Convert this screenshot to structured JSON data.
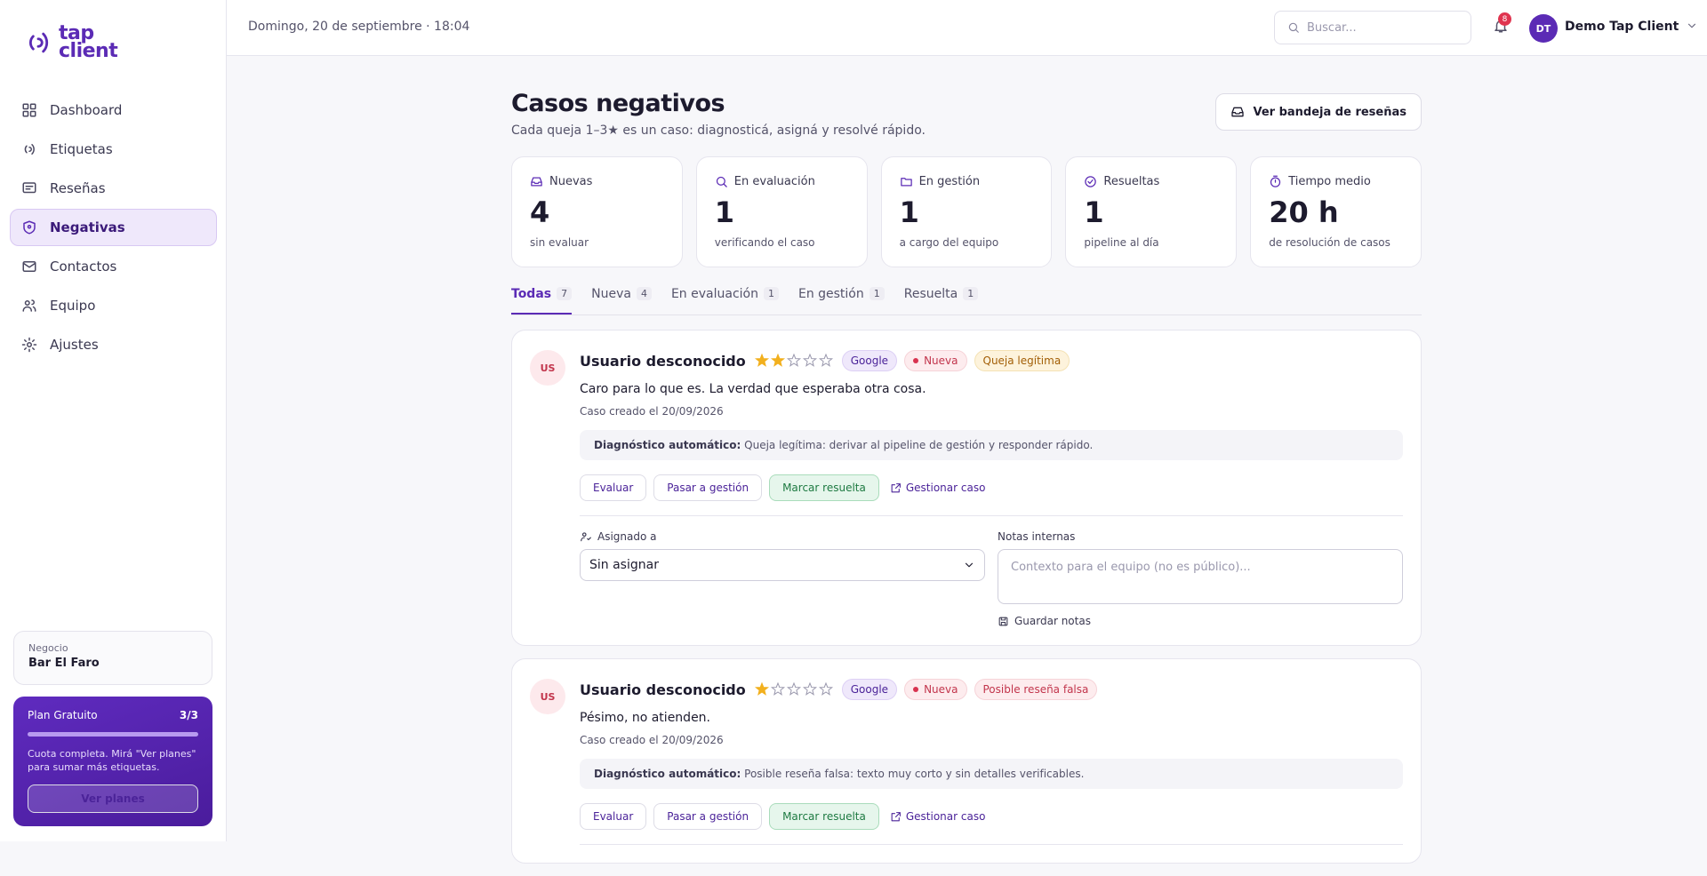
{
  "brand": {
    "line1": "tap",
    "line2": "client"
  },
  "nav": [
    {
      "label": "Dashboard",
      "icon": "grid"
    },
    {
      "label": "Etiquetas",
      "icon": "wave"
    },
    {
      "label": "Reseñas",
      "icon": "msg"
    },
    {
      "label": "Negativas",
      "icon": "shield",
      "active": true
    },
    {
      "label": "Contactos",
      "icon": "mail"
    },
    {
      "label": "Equipo",
      "icon": "users"
    },
    {
      "label": "Ajustes",
      "icon": "gear"
    }
  ],
  "business": {
    "label": "Negocio",
    "name": "Bar El Faro"
  },
  "plan": {
    "name": "Plan Gratuito",
    "usage": "3/3",
    "text": "Cuota completa. Mirá \"Ver planes\" para sumar más etiquetas.",
    "button": "Ver planes"
  },
  "header": {
    "date": "Domingo, 20 de septiembre · 18:04",
    "search_placeholder": "Buscar...",
    "notifications": 8,
    "user_initials": "DT",
    "user_name": "Demo Tap Client"
  },
  "page": {
    "title": "Casos negativos",
    "subtitle": "Cada queja 1–3★ es un caso: diagnosticá, asigná y resolvé rápido.",
    "button": "Ver bandeja de reseñas"
  },
  "stats": [
    {
      "label": "Nuevas",
      "value": 4,
      "note": "sin evaluar",
      "icon": "inbox"
    },
    {
      "label": "En evaluación",
      "value": 1,
      "note": "verificando el caso",
      "icon": "search"
    },
    {
      "label": "En gestión",
      "value": 1,
      "note": "a cargo del equipo",
      "icon": "folder"
    },
    {
      "label": "Resueltas",
      "value": 1,
      "note": "pipeline al día",
      "icon": "check"
    },
    {
      "label": "Tiempo medio",
      "value": "20 h",
      "note": "de resolución de casos",
      "icon": "timer"
    }
  ],
  "tabs": [
    {
      "label": "Todas",
      "count": 7,
      "active": true
    },
    {
      "label": "Nueva",
      "count": 4
    },
    {
      "label": "En evaluación",
      "count": 1
    },
    {
      "label": "En gestión",
      "count": 1
    },
    {
      "label": "Resuelta",
      "count": 1
    }
  ],
  "cases": [
    {
      "initials": "US",
      "name": "Usuario desconocido",
      "rating": 2,
      "source": "Google",
      "status": "Nueva",
      "tag": "Queja legítima",
      "tag_tone": "warn",
      "text": "Caro para lo que es. La verdad que esperaba otra cosa.",
      "created": "Caso creado el 20/09/2026",
      "diagnosis_label": "Diagnóstico automático:",
      "diagnosis": "Queja legítima: derivar al pipeline de gestión y responder rápido.",
      "actions": [
        "Evaluar",
        "Pasar a gestión",
        "Marcar resuelta",
        "Gestionar caso"
      ],
      "assign_label": "Asignado a",
      "assign_value": "Sin asignar",
      "notes_label": "Notas internas",
      "notes_placeholder": "Contexto para el equipo (no es público)...",
      "save_notes": "Guardar notas"
    },
    {
      "initials": "US",
      "name": "Usuario desconocido",
      "rating": 1,
      "source": "Google",
      "status": "Nueva",
      "tag": "Posible reseña falsa",
      "tag_tone": "danger",
      "text": "Pésimo, no atienden.",
      "created": "Caso creado el 20/09/2026",
      "diagnosis_label": "Diagnóstico automático:",
      "diagnosis": "Posible reseña falsa: texto muy corto y sin detalles verificables.",
      "actions": [
        "Evaluar",
        "Pasar a gestión",
        "Marcar resuelta",
        "Gestionar caso"
      ]
    }
  ],
  "rating_max": 5
}
